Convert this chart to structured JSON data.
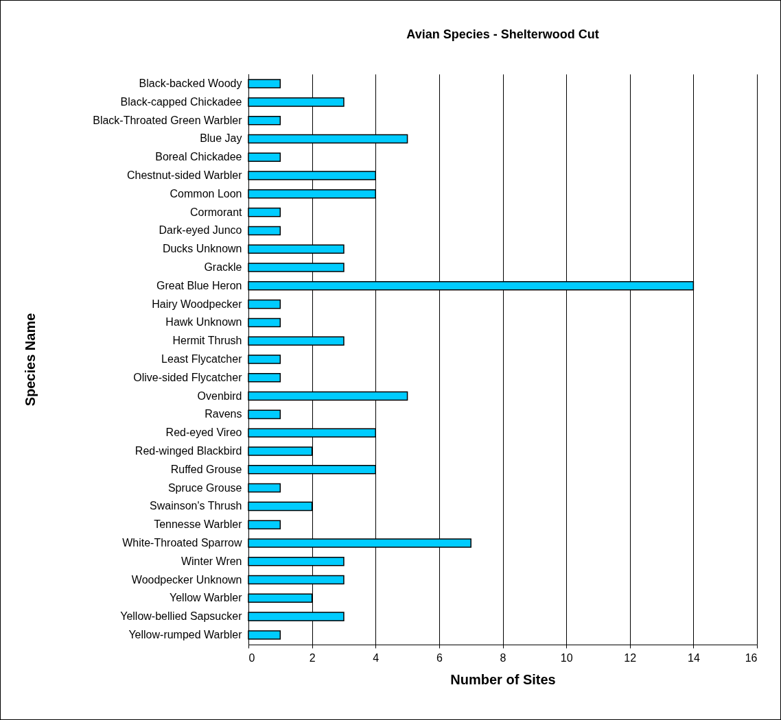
{
  "chart_data": {
    "type": "bar",
    "orientation": "horizontal",
    "title": "Avian Species - Shelterwood Cut",
    "xlabel": "Number of Sites",
    "ylabel": "Species Name",
    "categories": [
      "Black-backed Woody",
      "Black-capped Chickadee",
      "Black-Throated Green Warbler",
      "Blue Jay",
      "Boreal Chickadee",
      "Chestnut-sided Warbler",
      "Common Loon",
      "Cormorant",
      "Dark-eyed Junco",
      "Ducks Unknown",
      "Grackle",
      "Great Blue Heron",
      "Hairy Woodpecker",
      "Hawk Unknown",
      "Hermit Thrush",
      "Least Flycatcher",
      "Olive-sided Flycatcher",
      "Ovenbird",
      "Ravens",
      "Red-eyed Vireo",
      "Red-winged Blackbird",
      "Ruffed Grouse",
      "Spruce Grouse",
      "Swainson's Thrush",
      "Tennesse Warbler",
      "White-Throated Sparrow",
      "Winter Wren",
      "Woodpecker Unknown",
      "Yellow Warbler",
      "Yellow-bellied Sapsucker",
      "Yellow-rumped Warbler"
    ],
    "values": [
      1,
      3,
      1,
      5,
      1,
      4,
      4,
      1,
      1,
      3,
      3,
      14,
      1,
      1,
      3,
      1,
      1,
      5,
      1,
      4,
      2,
      4,
      1,
      2,
      1,
      7,
      3,
      3,
      2,
      3,
      1
    ],
    "color": "#00ccff",
    "xlim": [
      0,
      16
    ],
    "xticks": [
      0,
      2,
      4,
      6,
      8,
      10,
      12,
      14,
      16
    ],
    "grid": "x"
  }
}
